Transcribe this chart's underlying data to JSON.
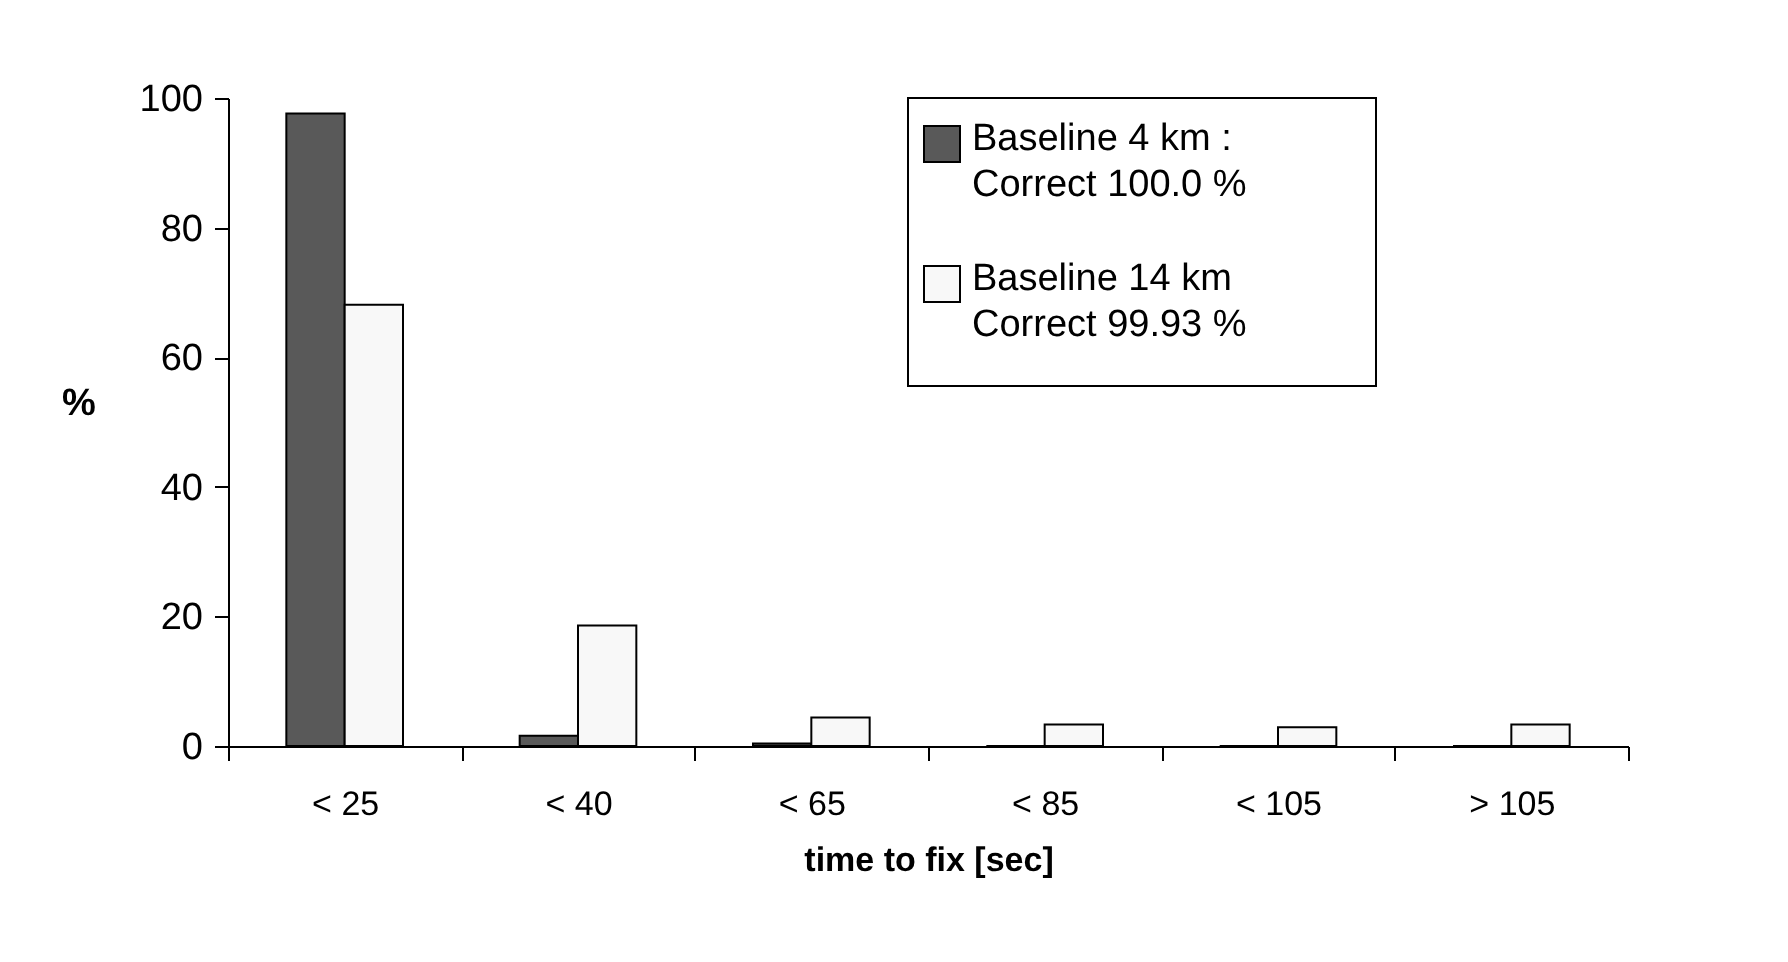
{
  "chart_data": {
    "type": "bar",
    "xlabel": "time to fix [sec]",
    "ylabel": "%",
    "categories": [
      "< 25",
      "< 40",
      "< 65",
      "< 85",
      "< 105",
      "> 105"
    ],
    "series": [
      {
        "name": "Baseline 4 km :\nCorrect 100.0 %",
        "color": "#595959",
        "values": [
          97.6,
          1.6,
          0.4,
          0,
          0,
          0
        ]
      },
      {
        "name": "Baseline 14 km\nCorrect 99.93 %",
        "color": "#f8f8f8",
        "values": [
          68.1,
          18.6,
          4.4,
          3.3,
          2.9,
          3.3
        ]
      }
    ],
    "ylim": [
      0,
      100
    ],
    "yticks": [
      0,
      20,
      40,
      60,
      80,
      100
    ],
    "grid": false,
    "legend": "top right"
  }
}
